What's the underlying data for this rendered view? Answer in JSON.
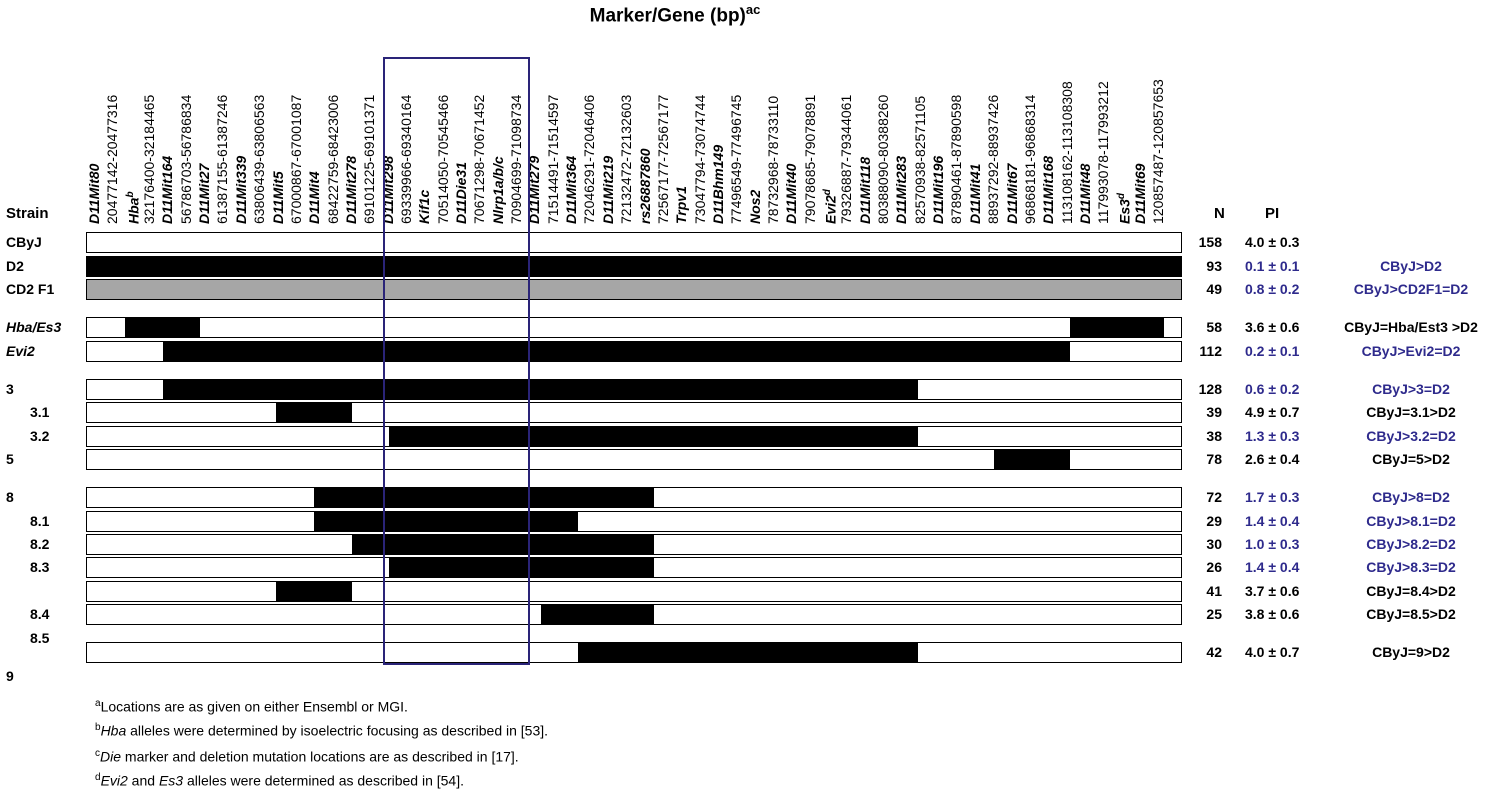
{
  "title": {
    "text": "Marker/Gene (bp)",
    "sup": "ac"
  },
  "headers": {
    "strain": "Strain",
    "n": "N",
    "pi": "PI"
  },
  "markers": [
    {
      "name": "D11Mit80",
      "bold": true
    },
    {
      "name": "20477142-20477316",
      "bold": false
    },
    {
      "name": "Hba",
      "sup": "b",
      "bold": true
    },
    {
      "name": "32176400-32184465",
      "bold": false
    },
    {
      "name": "D11Mit164",
      "bold": true
    },
    {
      "name": "56786703-56786834",
      "bold": false
    },
    {
      "name": "D11Mit27",
      "bold": true
    },
    {
      "name": "61387155-61387246",
      "bold": false
    },
    {
      "name": "D11Mit339",
      "bold": true
    },
    {
      "name": "63806439-63806563",
      "bold": false
    },
    {
      "name": "D11Mit5",
      "bold": true
    },
    {
      "name": "67000867-67001087",
      "bold": false
    },
    {
      "name": "D11Mit4",
      "bold": true
    },
    {
      "name": "68422759-68423006",
      "bold": false
    },
    {
      "name": "D11Mit278",
      "bold": true
    },
    {
      "name": "69101225-69101371",
      "bold": false
    },
    {
      "name": "D11Mit298",
      "bold": true
    },
    {
      "name": "69339966-69340164",
      "bold": false
    },
    {
      "name": "Kif1c",
      "bold": true
    },
    {
      "name": "70514050-70545466",
      "bold": false
    },
    {
      "name": "D11Die31",
      "bold": true
    },
    {
      "name": "70671298-70671452",
      "bold": false
    },
    {
      "name": "Nlrp1a/b/c",
      "bold": true
    },
    {
      "name": "70904699-71098734",
      "bold": false
    },
    {
      "name": "D11Mit279",
      "bold": true
    },
    {
      "name": "71514491-71514597",
      "bold": false
    },
    {
      "name": "D11Mit364",
      "bold": true
    },
    {
      "name": "72046291-72046406",
      "bold": false
    },
    {
      "name": "D11Mit219",
      "bold": true
    },
    {
      "name": "72132472-72132603",
      "bold": false
    },
    {
      "name": "rs26887860",
      "bold": true
    },
    {
      "name": "72567177-72567177",
      "bold": false
    },
    {
      "name": "Trpv1",
      "bold": true
    },
    {
      "name": "73047794-73074744",
      "bold": false
    },
    {
      "name": "D11Bhm149",
      "bold": true
    },
    {
      "name": "77496549-77496745",
      "bold": false
    },
    {
      "name": "Nos2",
      "bold": true
    },
    {
      "name": "78732968-78733110",
      "bold": false
    },
    {
      "name": "D11Mit40",
      "bold": true
    },
    {
      "name": "79078685-79078891",
      "bold": false
    },
    {
      "name": "Evi2",
      "sup": "d",
      "bold": true
    },
    {
      "name": "79326887-79344061",
      "bold": false
    },
    {
      "name": "D11Mit118",
      "bold": true
    },
    {
      "name": "80388090-80388260",
      "bold": false
    },
    {
      "name": "D11Mit283",
      "bold": true
    },
    {
      "name": "82570938-82571105",
      "bold": false
    },
    {
      "name": "D11Mit196",
      "bold": true
    },
    {
      "name": "87890461-87890598",
      "bold": false
    },
    {
      "name": "D11Mit41",
      "bold": true
    },
    {
      "name": "88937292-88937426",
      "bold": false
    },
    {
      "name": "D11Mit67",
      "bold": true
    },
    {
      "name": "96868181-96868314",
      "bold": false
    },
    {
      "name": "D11Mit168",
      "bold": true
    },
    {
      "name": "113108162-113108308",
      "bold": false
    },
    {
      "name": "D11Mit48",
      "bold": true
    },
    {
      "name": "117993078-117993212",
      "bold": false
    },
    {
      "name": "Es3",
      "sup": "d",
      "bold": true
    },
    {
      "name": "D11Mit69",
      "bold": true
    },
    {
      "name": "120857487-120857653",
      "bold": false
    }
  ],
  "rows": [
    {
      "strain": "CByJ",
      "italic": false,
      "fill": "white",
      "segments": [],
      "n": "158",
      "pi": "4.0 ± 0.3",
      "cmp": "",
      "blue": false
    },
    {
      "strain": "D2",
      "italic": false,
      "fill": "black",
      "segments": [],
      "n": "93",
      "pi": "0.1 ± 0.1",
      "cmp": "CByJ>D2",
      "blue": true
    },
    {
      "strain": "CD2 F1",
      "italic": false,
      "fill": "gray",
      "segments": [],
      "n": "49",
      "pi": "0.8 ± 0.2",
      "cmp": "CByJ>CD2F1=D2",
      "blue": true
    },
    {
      "strain": "Hba/Es3",
      "italic": true,
      "fill": "white",
      "segments": [
        [
          1,
          3
        ],
        [
          26,
          28.5
        ]
      ],
      "n": "58",
      "pi": "3.6 ± 0.6",
      "cmp": "CByJ=Hba/Est3 >D2",
      "blue": false
    },
    {
      "strain": "Evi2",
      "italic": true,
      "fill": "white",
      "segments": [
        [
          2,
          26
        ]
      ],
      "n": "112",
      "pi": "0.2 ± 0.1",
      "cmp": "CByJ>Evi2=D2",
      "blue": true
    },
    {
      "strain": "3",
      "italic": false,
      "fill": "white",
      "segments": [
        [
          2,
          22
        ]
      ],
      "n": "128",
      "pi": "0.6 ± 0.2",
      "cmp": "CByJ>3=D2",
      "blue": true
    },
    {
      "strain": "3.1",
      "italic": false,
      "fill": "white",
      "segments": [
        [
          5,
          7
        ]
      ],
      "n": "39",
      "pi": "4.9 ± 0.7",
      "cmp": "CByJ=3.1>D2",
      "blue": false
    },
    {
      "strain": "3.2",
      "italic": false,
      "fill": "white",
      "segments": [
        [
          8,
          22
        ]
      ],
      "n": "38",
      "pi": "1.3 ± 0.3",
      "cmp": "CByJ>3.2=D2",
      "blue": true
    },
    {
      "strain": "5",
      "italic": false,
      "fill": "white",
      "segments": [
        [
          24,
          26
        ]
      ],
      "n": "78",
      "pi": "2.6 ± 0.4",
      "cmp": "CByJ=5>D2",
      "blue": false
    },
    {
      "strain": "8",
      "italic": false,
      "fill": "white",
      "segments": [
        [
          6,
          15
        ]
      ],
      "n": "72",
      "pi": "1.7 ± 0.3",
      "cmp": "CByJ>8=D2",
      "blue": true
    },
    {
      "strain": "8.1",
      "italic": false,
      "fill": "white",
      "segments": [
        [
          6,
          13
        ]
      ],
      "n": "29",
      "pi": "1.4 ± 0.4",
      "cmp": "CByJ>8.1=D2",
      "blue": true
    },
    {
      "strain": "8.2",
      "italic": false,
      "fill": "white",
      "segments": [
        [
          7,
          15
        ]
      ],
      "n": "30",
      "pi": "1.0 ± 0.3",
      "cmp": "CByJ>8.2=D2",
      "blue": true
    },
    {
      "strain": "8.3",
      "italic": false,
      "fill": "white",
      "segments": [
        [
          8,
          15
        ]
      ],
      "n": "26",
      "pi": "1.4 ± 0.4",
      "cmp": "CByJ>8.3=D2",
      "blue": true
    },
    {
      "strain": "",
      "italic": false,
      "fill": "white",
      "segments": [
        [
          5,
          7
        ]
      ],
      "n": "41",
      "pi": "3.7 ± 0.6",
      "cmp": "CByJ=8.4>D2",
      "blue": false
    },
    {
      "strain": "8.4",
      "italic": false,
      "fill": "white",
      "segments": [
        [
          12,
          15
        ]
      ],
      "n": "25",
      "pi": "3.8 ± 0.6",
      "cmp": "CByJ=8.5>D2",
      "blue": false
    },
    {
      "strain": "8.5",
      "italic": false,
      "fill": "none",
      "segments": [],
      "n": "",
      "pi": "",
      "cmp": "",
      "blue": false
    },
    {
      "strain": "",
      "italic": false,
      "fill": "white",
      "segments": [
        [
          13,
          22
        ]
      ],
      "n": "42",
      "pi": "4.0 ± 0.7",
      "cmp": "CByJ=9>D2",
      "blue": false
    },
    {
      "strain": "9",
      "italic": false,
      "fill": "none",
      "segments": [],
      "n": "",
      "pi": "",
      "cmp": "",
      "blue": false
    }
  ],
  "footnotes": [
    {
      "sup": "a",
      "em": "",
      "text": "Locations are as given on either Ensembl or MGI."
    },
    {
      "sup": "b",
      "em": "Hba",
      "text": " alleles were determined by isoelectric focusing as described in [53]."
    },
    {
      "sup": "c",
      "em": "Die",
      "text": " marker and deletion mutation locations are as described in [17]."
    },
    {
      "sup": "d",
      "em": "Evi2",
      "text": " and ",
      "em2": "Es3",
      "text2": " alleles were determined as described in [54]."
    }
  ],
  "colors": {
    "highlight_box": "#2a2478",
    "significant_text": "#2e2a8c",
    "heterozygous": "#a6a6a6"
  }
}
